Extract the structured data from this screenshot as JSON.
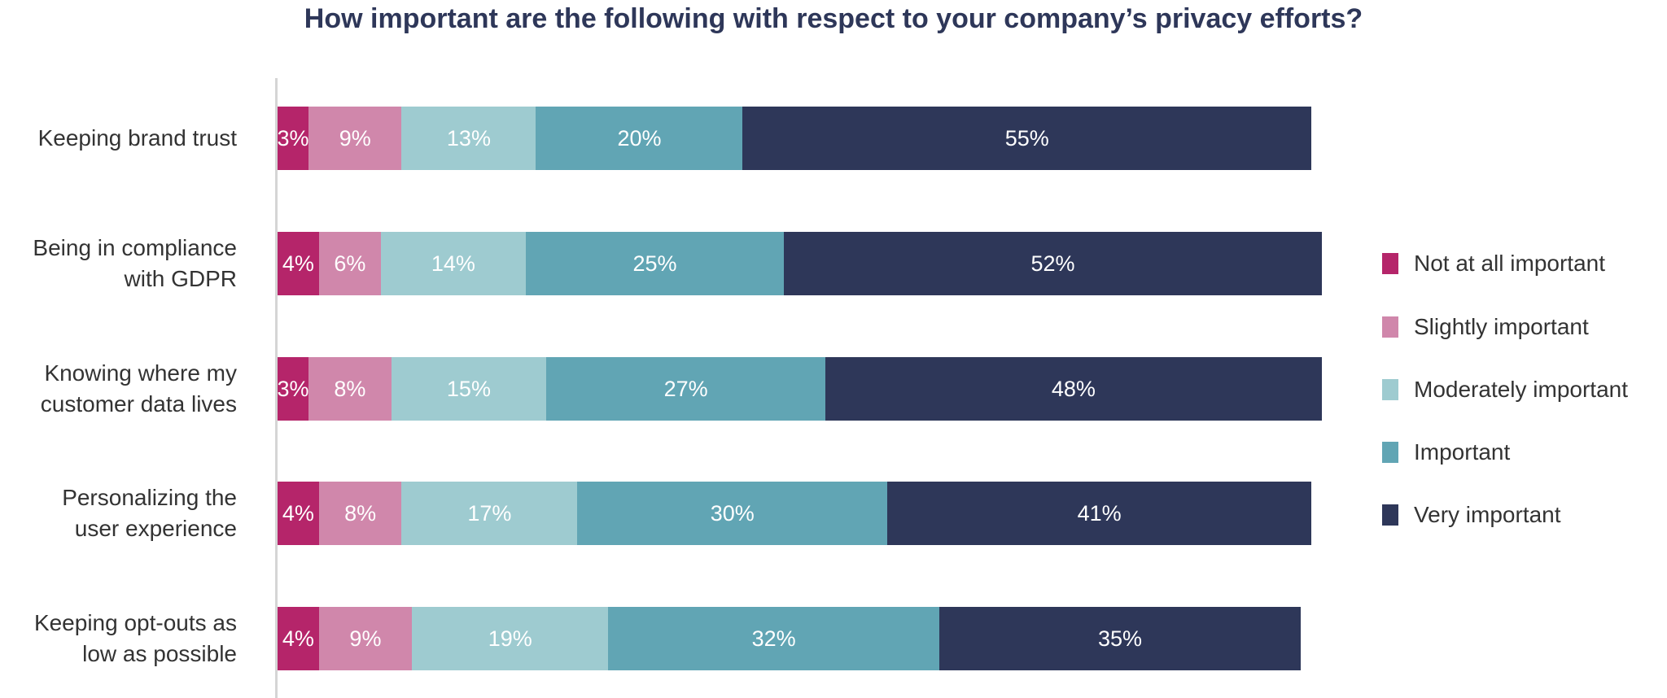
{
  "chart_data": {
    "type": "bar",
    "orientation": "horizontal",
    "stacked": true,
    "title": "How important are the following with respect to your company’s privacy efforts?",
    "categories": [
      "Keeping brand trust",
      "Being in compliance with GDPR",
      "Knowing where my customer data lives",
      "Personalizing the user experience",
      "Keeping opt-outs as low as possible"
    ],
    "category_lines": [
      [
        "Keeping brand trust"
      ],
      [
        "Being in compliance",
        "with GDPR"
      ],
      [
        "Knowing where my",
        "customer data lives"
      ],
      [
        "Personalizing the",
        "user experience"
      ],
      [
        "Keeping opt-outs as",
        "low as possible"
      ]
    ],
    "series": [
      {
        "name": "Not at all important",
        "color": "#B5256A",
        "values": [
          3,
          4,
          3,
          4,
          4
        ]
      },
      {
        "name": "Slightly important",
        "color": "#D087AB",
        "values": [
          9,
          6,
          8,
          8,
          9
        ]
      },
      {
        "name": "Moderately important",
        "color": "#9ECBD0",
        "values": [
          13,
          14,
          15,
          17,
          19
        ]
      },
      {
        "name": "Important",
        "color": "#61A5B4",
        "values": [
          20,
          25,
          27,
          30,
          32
        ]
      },
      {
        "name": "Very important",
        "color": "#2E3759",
        "values": [
          55,
          52,
          48,
          41,
          35
        ]
      }
    ],
    "value_suffix": "%",
    "xlim": [
      0,
      100
    ],
    "grid": false,
    "legend_position": "right"
  }
}
